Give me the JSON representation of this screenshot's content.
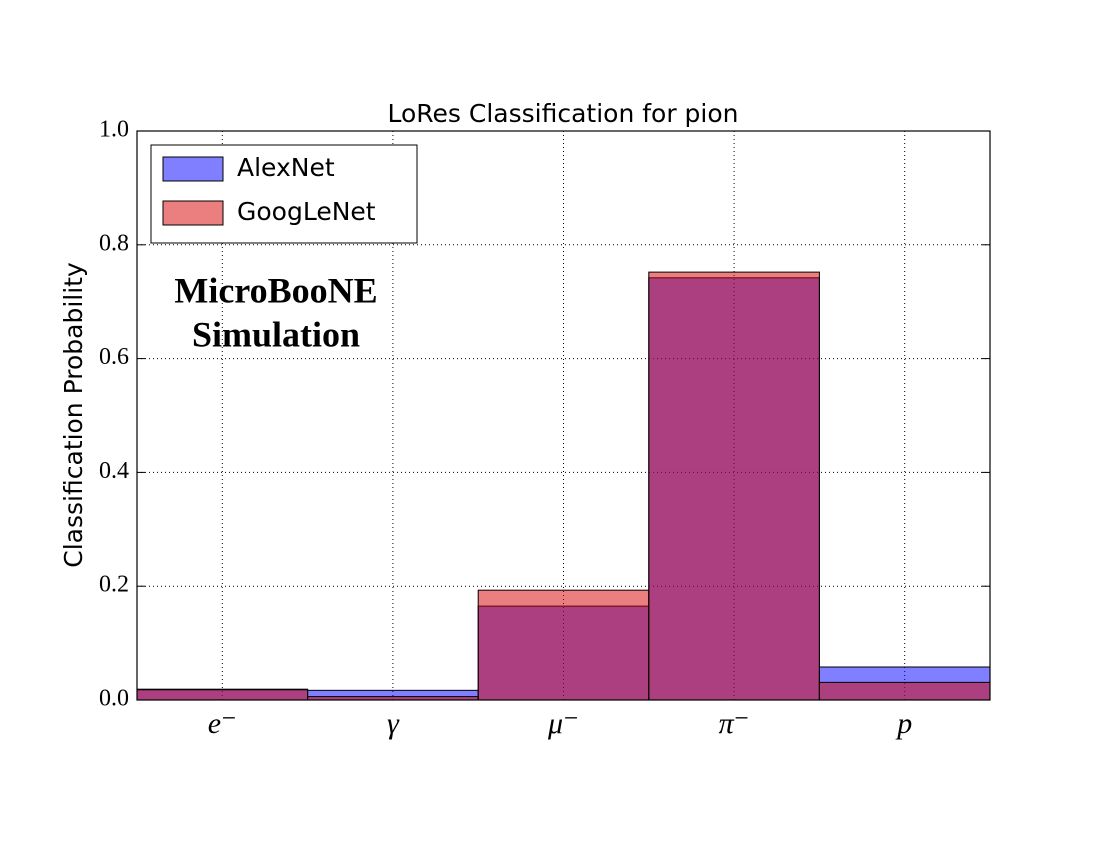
{
  "chart_data": {
    "type": "bar",
    "title": "LoRes Classification for pion",
    "y_label": "Classification Probability",
    "annotation": [
      "MicroBooNE",
      "Simulation"
    ],
    "categories": [
      "e⁻",
      "γ",
      "μ⁻",
      "π⁻",
      "p"
    ],
    "series": [
      {
        "name": "AlexNet",
        "color": "#0000ff",
        "values": [
          0.019,
          0.017,
          0.165,
          0.742,
          0.058
        ]
      },
      {
        "name": "GoogLeNet",
        "color": "#d70000",
        "values": [
          0.018,
          0.006,
          0.193,
          0.752,
          0.031
        ]
      }
    ],
    "ylim": [
      0,
      1
    ],
    "yticks": [
      {
        "value": 0,
        "label": "0.0"
      },
      0.2,
      0.4,
      0.6,
      0.8,
      {
        "value": 1,
        "label": "1.0"
      }
    ],
    "grid": true,
    "legend": "upper-left",
    "opacity": 0.5
  }
}
